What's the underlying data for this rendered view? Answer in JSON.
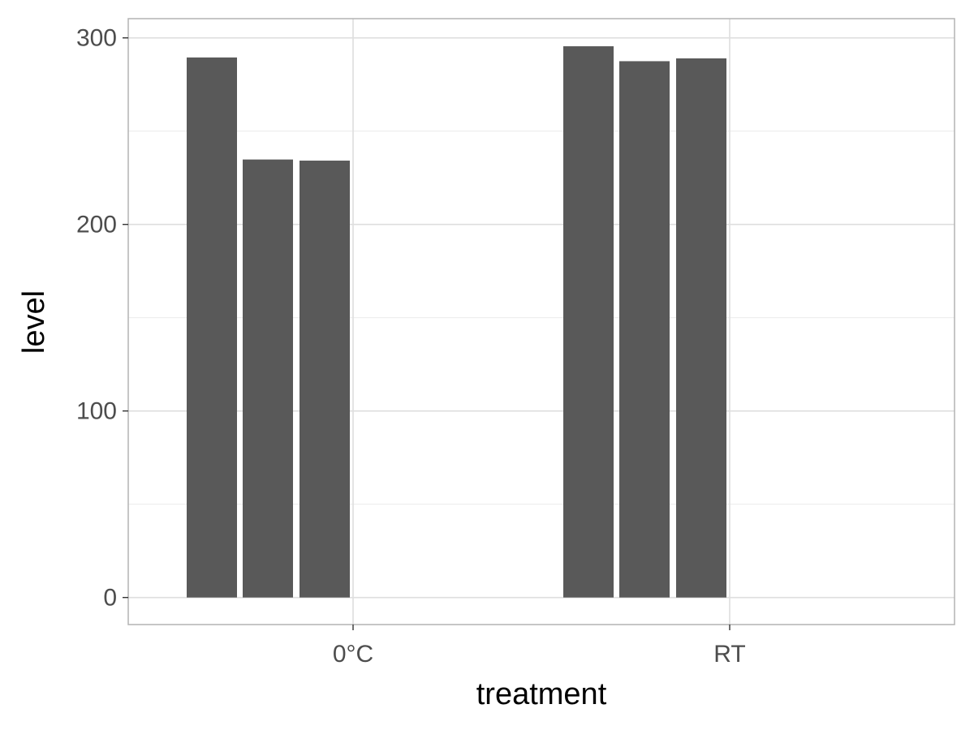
{
  "chart_data": {
    "type": "bar",
    "title": "",
    "xlabel": "treatment",
    "ylabel": "level",
    "categories": [
      "0°C",
      "RT"
    ],
    "values": [
      [
        289.5,
        234.8,
        234.2
      ],
      [
        295.5,
        287.5,
        289.0
      ]
    ],
    "ylim": [
      -14.5,
      310.3
    ],
    "yticks": [
      0,
      100,
      200,
      300
    ],
    "grid": true,
    "legend": "none",
    "bar_color": "#595959",
    "grid_color": "#ebebeb",
    "panel_border_color": "#b3b3b3"
  }
}
